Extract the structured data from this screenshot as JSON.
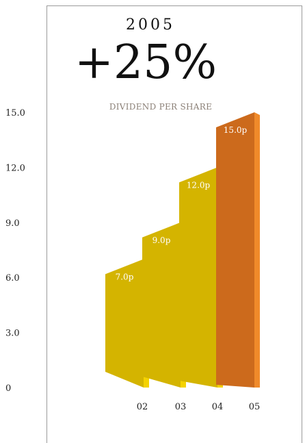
{
  "header": {
    "year": "2005",
    "headline": "+25%",
    "subtitle": "DIVIDEND PER SHARE"
  },
  "chart_data": {
    "type": "bar",
    "categories": [
      "02",
      "03",
      "04",
      "05"
    ],
    "values": [
      7.0,
      9.0,
      12.0,
      15.0
    ],
    "data_labels": [
      "7.0p",
      "9.0p",
      "12.0p",
      "15.0p"
    ],
    "y_ticks": [
      "0",
      "3.0",
      "6.0",
      "9.0",
      "12.0",
      "15.0"
    ],
    "y_tick_values": [
      0,
      3,
      6,
      9,
      12,
      15
    ],
    "ylim": [
      0,
      15
    ],
    "grid": false,
    "title": "DIVIDEND PER SHARE",
    "colors": {
      "bar_face": "#d4b400",
      "bar_side": "#f4d200",
      "highlight_face": "#cc6a1c",
      "highlight_side": "#f08a2a"
    }
  }
}
